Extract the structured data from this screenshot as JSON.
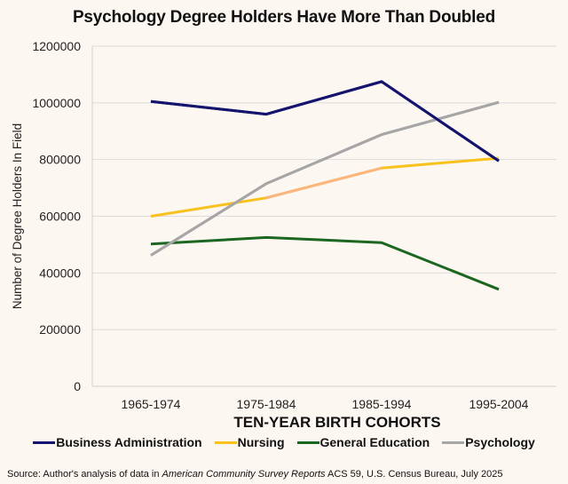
{
  "title": "Psychology Degree Holders Have More Than Doubled",
  "chart_data": {
    "type": "line",
    "title": "Psychology Degree Holders Have More Than Doubled",
    "xlabel": "TEN-YEAR BIRTH COHORTS",
    "ylabel": "Number of Degree Holders In Field",
    "categories": [
      "1965-1974",
      "1975-1984",
      "1985-1994",
      "1995-2004"
    ],
    "ylim": [
      0,
      1200000
    ],
    "yticks": [
      0,
      200000,
      400000,
      600000,
      800000,
      1000000,
      1200000
    ],
    "ytick_labels": [
      "0",
      "200000",
      "400000",
      "600000",
      "800000",
      "1000000",
      "1200000"
    ],
    "grid": true,
    "legend_position": "bottom",
    "series": [
      {
        "name": "Business Administration",
        "color": "#14146e",
        "values": [
          1005000,
          960000,
          1075000,
          795000
        ]
      },
      {
        "name": "Nursing",
        "color": "#f8c11c",
        "values": [
          600000,
          665000,
          770000,
          805000
        ]
      },
      {
        "name": "General Education",
        "color": "#1b6620",
        "values": [
          502000,
          525000,
          507000,
          342000
        ]
      },
      {
        "name": "Psychology",
        "color": "#a6a6a6",
        "values": [
          462000,
          715000,
          888000,
          1002000
        ]
      }
    ]
  },
  "source": {
    "prefix": "Source: Author's analysis of data in ",
    "italic": "American Community Survey Reports",
    "suffix": " ACS 59, U.S. Census Bureau, July 2025"
  }
}
